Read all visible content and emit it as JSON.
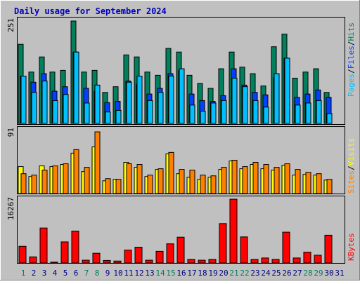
{
  "title": "Daily usage for September 2024",
  "colors": {
    "background": "#c0c0c0",
    "title_text": "#0000c0",
    "hits": "#00805c",
    "files": "#0040ff",
    "pages": "#00c0ff",
    "visits": "#ff8000",
    "sites": "#ffff00",
    "kbytes": "#ff0000",
    "weekend_day": "#00805c",
    "weekday": "#000080"
  },
  "chart_data": [
    {
      "type": "bar",
      "panel": "hits-files-pages",
      "y_max_label": "251",
      "legend": [
        "Pages",
        "Files",
        "Hits"
      ],
      "legend_separator": "/",
      "categories": [
        "1",
        "2",
        "3",
        "4",
        "5",
        "6",
        "7",
        "8",
        "9",
        "10",
        "11",
        "12",
        "13",
        "14",
        "15",
        "16",
        "17",
        "18",
        "19",
        "20",
        "21",
        "22",
        "23",
        "24",
        "25",
        "26",
        "27",
        "28",
        "29",
        "30",
        "31"
      ],
      "ylim": [
        0,
        251
      ],
      "series": [
        {
          "name": "Hits",
          "values": [
            194,
            126,
            163,
            126,
            130,
            251,
            126,
            130,
            76,
            90,
            168,
            163,
            126,
            118,
            184,
            175,
            118,
            98,
            86,
            134,
            175,
            138,
            122,
            92,
            188,
            219,
            111,
            126,
            134,
            76,
            0
          ]
        },
        {
          "name": "Files",
          "values": [
            116,
            101,
            122,
            79,
            90,
            175,
            86,
            79,
            51,
            54,
            104,
            96,
            72,
            86,
            122,
            130,
            72,
            56,
            54,
            68,
            134,
            94,
            76,
            70,
            112,
            160,
            64,
            72,
            82,
            64,
            0
          ]
        },
        {
          "name": "Pages",
          "values": [
            116,
            76,
            104,
            56,
            71,
            175,
            50,
            94,
            28,
            32,
            101,
            116,
            56,
            76,
            116,
            134,
            45,
            30,
            50,
            56,
            111,
            90,
            56,
            40,
            122,
            160,
            45,
            50,
            56,
            24,
            0
          ]
        }
      ]
    },
    {
      "type": "bar",
      "panel": "visits-sites",
      "y_max_label": "91",
      "legend": [
        "Sites",
        "Visits"
      ],
      "legend_separator": "/",
      "categories": [
        "1",
        "2",
        "3",
        "4",
        "5",
        "6",
        "7",
        "8",
        "9",
        "10",
        "11",
        "12",
        "13",
        "14",
        "15",
        "16",
        "17",
        "18",
        "19",
        "20",
        "21",
        "22",
        "23",
        "24",
        "25",
        "26",
        "27",
        "28",
        "29",
        "30",
        "31"
      ],
      "ylim": [
        0,
        91
      ],
      "series": [
        {
          "name": "Visits",
          "values": [
            28,
            26,
            33,
            39,
            42,
            62,
            37,
            87,
            21,
            20,
            42,
            41,
            26,
            35,
            58,
            34,
            33,
            26,
            25,
            37,
            47,
            38,
            44,
            41,
            37,
            42,
            34,
            30,
            28,
            20,
            0
          ]
        },
        {
          "name": "Sites",
          "values": [
            38,
            24,
            39,
            38,
            41,
            57,
            31,
            66,
            18,
            20,
            44,
            37,
            24,
            34,
            56,
            28,
            23,
            20,
            23,
            34,
            46,
            35,
            41,
            35,
            33,
            40,
            26,
            27,
            26,
            19,
            0
          ]
        }
      ]
    },
    {
      "type": "bar",
      "panel": "kbytes",
      "y_max_label": "16267",
      "legend": [
        "KBytes"
      ],
      "categories": [
        "1",
        "2",
        "3",
        "4",
        "5",
        "6",
        "7",
        "8",
        "9",
        "10",
        "11",
        "12",
        "13",
        "14",
        "15",
        "16",
        "17",
        "18",
        "19",
        "20",
        "21",
        "22",
        "23",
        "24",
        "25",
        "26",
        "27",
        "28",
        "29",
        "30",
        "31"
      ],
      "ylim": [
        0,
        16267
      ],
      "series": [
        {
          "name": "KBytes",
          "values": [
            4243,
            1556,
            8911,
            212,
            5375,
            8133,
            707,
            2476,
            636,
            495,
            3288,
            4030,
            707,
            2971,
            4879,
            6577,
            919,
            707,
            919,
            10044,
            16267,
            6648,
            919,
            1273,
            919,
            7855,
            1273,
            2759,
            1980,
            7077,
            0
          ]
        }
      ]
    }
  ],
  "x_axis_days": [
    {
      "label": "1",
      "weekend": true
    },
    {
      "label": "2",
      "weekend": false
    },
    {
      "label": "3",
      "weekend": false
    },
    {
      "label": "4",
      "weekend": false
    },
    {
      "label": "5",
      "weekend": false
    },
    {
      "label": "6",
      "weekend": false
    },
    {
      "label": "7",
      "weekend": true
    },
    {
      "label": "8",
      "weekend": true
    },
    {
      "label": "9",
      "weekend": false
    },
    {
      "label": "10",
      "weekend": false
    },
    {
      "label": "11",
      "weekend": false
    },
    {
      "label": "12",
      "weekend": false
    },
    {
      "label": "13",
      "weekend": false
    },
    {
      "label": "14",
      "weekend": true
    },
    {
      "label": "15",
      "weekend": true
    },
    {
      "label": "16",
      "weekend": false
    },
    {
      "label": "17",
      "weekend": false
    },
    {
      "label": "18",
      "weekend": false
    },
    {
      "label": "19",
      "weekend": false
    },
    {
      "label": "20",
      "weekend": false
    },
    {
      "label": "21",
      "weekend": true
    },
    {
      "label": "22",
      "weekend": true
    },
    {
      "label": "23",
      "weekend": false
    },
    {
      "label": "24",
      "weekend": false
    },
    {
      "label": "25",
      "weekend": false
    },
    {
      "label": "26",
      "weekend": false
    },
    {
      "label": "27",
      "weekend": false
    },
    {
      "label": "28",
      "weekend": true
    },
    {
      "label": "29",
      "weekend": true
    },
    {
      "label": "30",
      "weekend": false
    },
    {
      "label": "31",
      "weekend": false
    }
  ]
}
